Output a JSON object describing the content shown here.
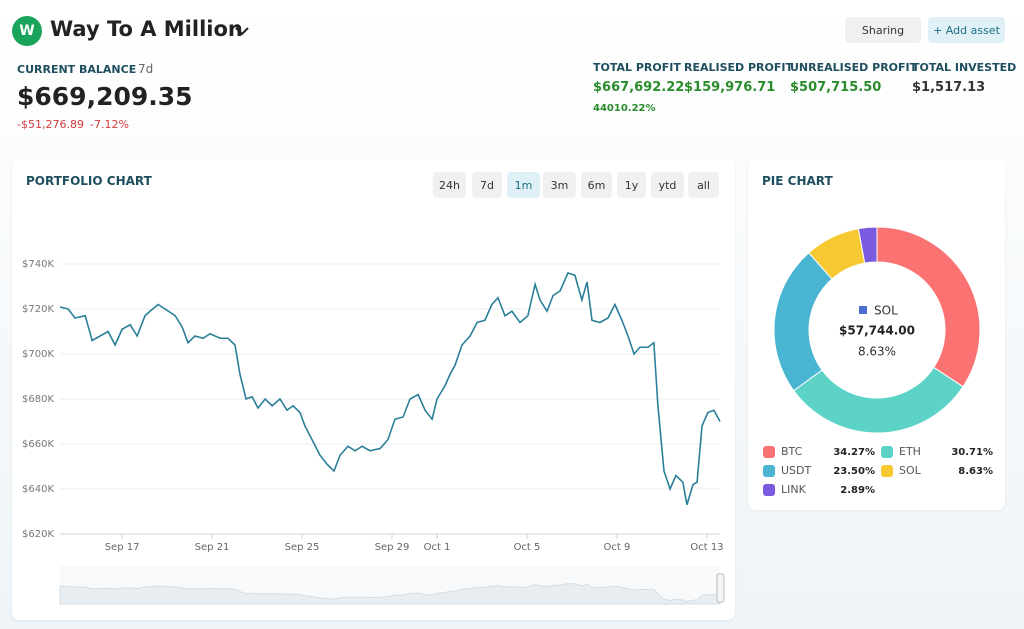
{
  "header": {
    "avatar": "W",
    "title": "Way To A Million",
    "buttons": [
      "Sharing",
      "+ Add asset"
    ]
  },
  "balance": {
    "label": "CURRENT BALANCE",
    "period": "7d",
    "value": "$669,209.35",
    "change": "-$51,276.89",
    "change_pct": "-7.12%"
  },
  "stats": [
    {
      "label": "TOTAL PROFIT",
      "value": "$667,692.22",
      "sub": "44010.22%"
    },
    {
      "label": "REALISED PROFIT",
      "value": "$159,976.71"
    },
    {
      "label": "UNREALISED PROFIT",
      "value": "$507,715.50"
    },
    {
      "label": "TOTAL INVESTED",
      "value": "$1,517.13"
    }
  ],
  "ranges": [
    "24h",
    "7d",
    "1m",
    "3m",
    "6m",
    "1y",
    "ytd",
    "all"
  ],
  "active_range": 2,
  "chart_data": [
    {
      "type": "line",
      "title": "PORTFOLIO CHART",
      "color": "#2b7f99",
      "grid": true,
      "x": [
        14.24,
        14.6,
        14.91,
        15.36,
        15.67,
        16.02,
        16.38,
        16.69,
        17,
        17.36,
        17.67,
        18.02,
        18.24,
        18.6,
        18.91,
        19.36,
        19.67,
        19.93,
        20.24,
        20.6,
        20.91,
        21.36,
        21.71,
        22.02,
        22.24,
        22.51,
        22.78,
        23.04,
        23.36,
        23.67,
        24.02,
        24.33,
        24.6,
        24.91,
        25.13,
        25.44,
        25.8,
        26.11,
        26.42,
        26.69,
        27.04,
        27.36,
        27.67,
        28.02,
        28.47,
        28.82,
        29.13,
        29.49,
        29.8,
        30.16,
        30.47,
        30.78,
        31,
        31.36,
        31.58,
        31.8,
        32.11,
        32.47,
        32.78,
        33.13,
        33.44,
        33.71,
        34.02,
        34.33,
        34.69,
        35.04,
        35.36,
        35.58,
        35.89,
        36.16,
        36.47,
        36.82,
        37.13,
        37.44,
        37.67,
        37.89,
        38.24,
        38.6,
        38.91,
        39.22,
        39.49,
        39.76,
        40.02,
        40.38,
        40.64,
        40.82,
        41.09,
        41.36,
        41.62,
        41.93,
        42.11,
        42.38,
        42.56,
        42.78,
        43.04,
        43.31,
        43.58
      ],
      "values": [
        720900,
        720000,
        716000,
        717000,
        706000,
        708000,
        710000,
        704000,
        711000,
        713000,
        708000,
        717000,
        719000,
        722000,
        720000,
        717000,
        712000,
        705000,
        708000,
        707000,
        709000,
        707000,
        707000,
        704000,
        691000,
        680000,
        681000,
        676000,
        680000,
        677000,
        680000,
        675000,
        677000,
        674000,
        668000,
        662000,
        655000,
        651000,
        648000,
        655000,
        659000,
        657000,
        659000,
        657000,
        658000,
        662000,
        671000,
        672000,
        680000,
        682000,
        675000,
        671000,
        680000,
        686000,
        691000,
        695000,
        704000,
        708000,
        714000,
        715000,
        722000,
        725000,
        717000,
        719000,
        714000,
        717000,
        731000,
        724000,
        719000,
        726000,
        728000,
        736000,
        735000,
        724000,
        732000,
        715000,
        714000,
        716000,
        722000,
        715000,
        708000,
        700000,
        703000,
        703000,
        705000,
        677000,
        648000,
        640000,
        646000,
        643000,
        633000,
        642000,
        643000,
        668000,
        674000,
        675000,
        670000
      ],
      "xlim": [
        14.24,
        43.58
      ],
      "xticks": [
        {
          "value": 17,
          "label": "Sep 17"
        },
        {
          "value": 21,
          "label": "Sep 21"
        },
        {
          "value": 25,
          "label": "Sep 25"
        },
        {
          "value": 29,
          "label": "Sep 29"
        },
        {
          "value": 31,
          "label": "Oct 1"
        },
        {
          "value": 35,
          "label": "Oct 5"
        },
        {
          "value": 39,
          "label": "Oct 9"
        },
        {
          "value": 43,
          "label": "Oct 13"
        }
      ],
      "ylim": [
        620000,
        750000
      ],
      "yticks": [
        {
          "value": 620000,
          "label": "$620K"
        },
        {
          "value": 640000,
          "label": "$640K"
        },
        {
          "value": 660000,
          "label": "$660K"
        },
        {
          "value": 680000,
          "label": "$680K"
        },
        {
          "value": 700000,
          "label": "$700K"
        },
        {
          "value": 720000,
          "label": "$720K"
        },
        {
          "value": 740000,
          "label": "$740K"
        }
      ]
    },
    {
      "type": "pie",
      "title": "PIE CHART",
      "categories": [
        "BTC",
        "ETH",
        "USDT",
        "SOL",
        "LINK"
      ],
      "values": [
        34.27,
        30.71,
        23.5,
        8.63,
        2.89
      ],
      "value_labels": [
        "34.27%",
        "30.71%",
        "23.50%",
        "8.63%",
        "2.89%"
      ],
      "colors": [
        "#fb7272",
        "#5cd3c6",
        "#4ab5d3",
        "#f6c933",
        "#7a5be0"
      ],
      "selected": 3,
      "center_label": "$57,744.00"
    }
  ]
}
